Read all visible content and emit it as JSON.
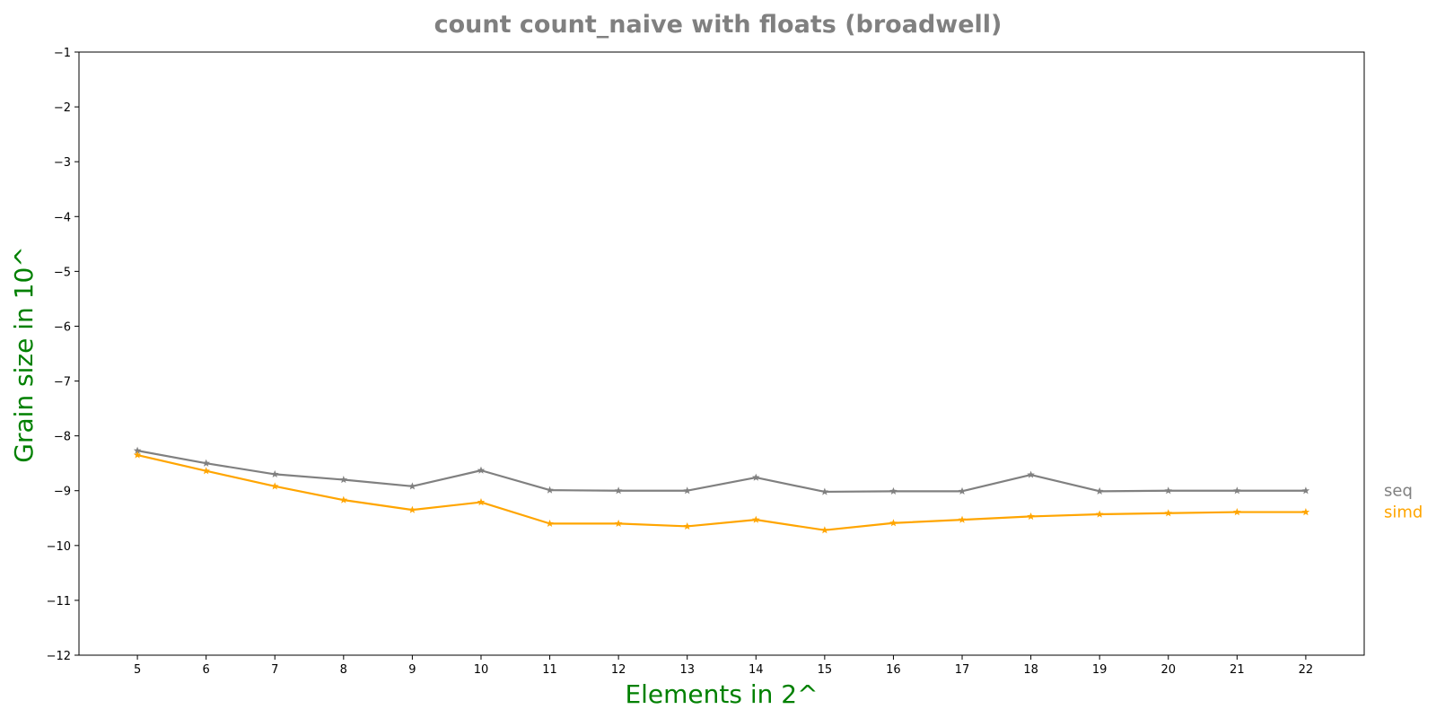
{
  "chart_data": {
    "type": "line",
    "title": "count count_naive with floats  (broadwell)",
    "title_color": "#808080",
    "xlabel": "Elements in 2^",
    "ylabel": "Grain size in 10^",
    "label_color": "#008000",
    "x": [
      5,
      6,
      7,
      8,
      9,
      10,
      11,
      12,
      13,
      14,
      15,
      16,
      17,
      18,
      19,
      20,
      21,
      22
    ],
    "xlim": [
      4.15,
      22.85
    ],
    "ylim": [
      -12,
      -1
    ],
    "yticks": [
      -1,
      -2,
      -3,
      -4,
      -5,
      -6,
      -7,
      -8,
      -9,
      -10,
      -11,
      -12
    ],
    "grid": false,
    "legend_position": "right",
    "series": [
      {
        "name": "seq",
        "color": "#808080",
        "marker": "star",
        "values": [
          -8.27,
          -8.5,
          -8.7,
          -8.8,
          -8.92,
          -8.63,
          -8.99,
          -9.0,
          -9.0,
          -8.76,
          -9.02,
          -9.01,
          -9.01,
          -8.71,
          -9.01,
          -9.0,
          -9.0,
          -9.0
        ]
      },
      {
        "name": "simd",
        "color": "#ffa500",
        "marker": "star",
        "values": [
          -8.35,
          -8.64,
          -8.92,
          -9.17,
          -9.35,
          -9.21,
          -9.6,
          -9.6,
          -9.65,
          -9.53,
          -9.72,
          -9.59,
          -9.53,
          -9.47,
          -9.43,
          -9.41,
          -9.39,
          -9.39
        ]
      }
    ]
  }
}
